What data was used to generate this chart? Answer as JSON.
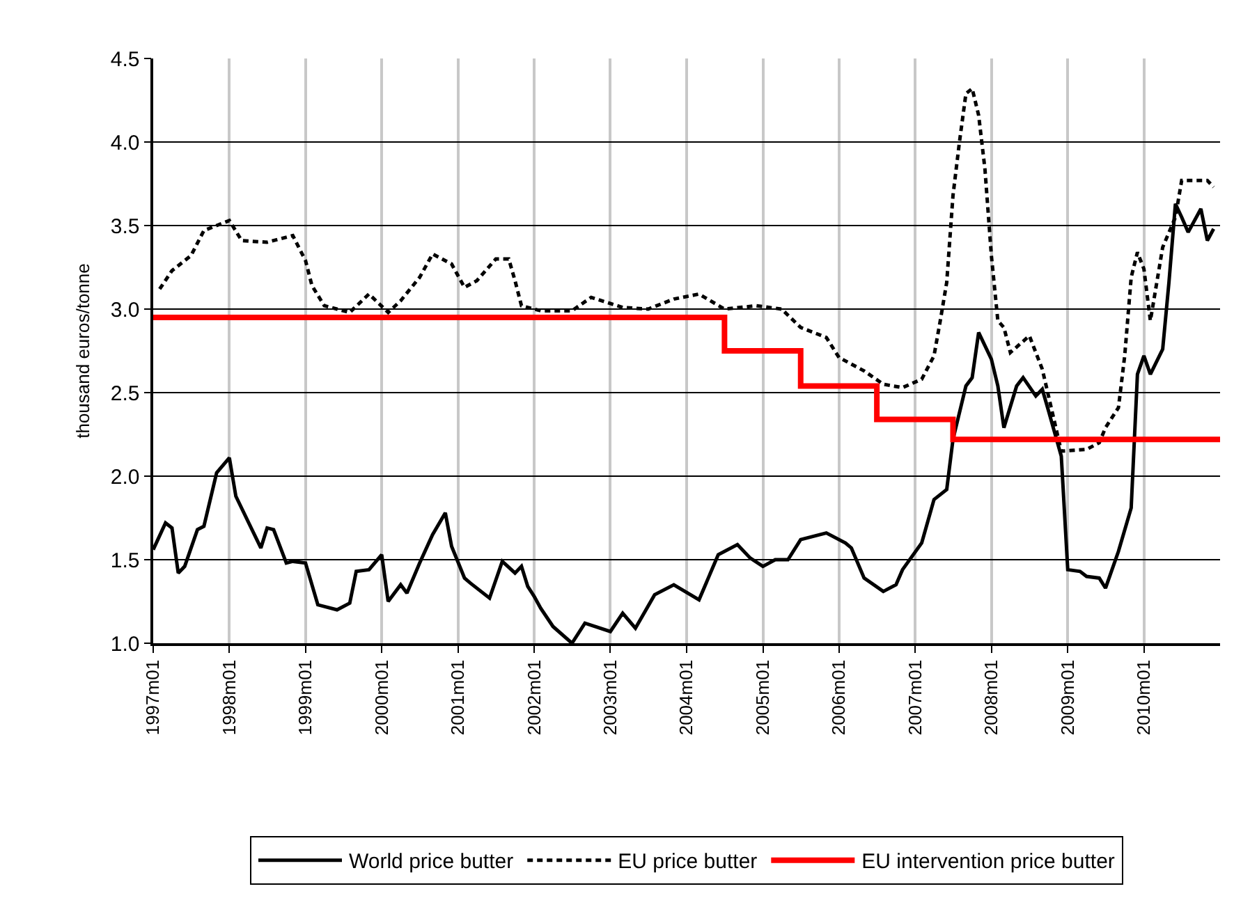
{
  "chart_data": {
    "type": "line",
    "ylabel": "thousand euros/tonne",
    "xlim": [
      "1997-01",
      "2011-01"
    ],
    "xticks": [
      {
        "value": "1997-01",
        "label": "1997m01"
      },
      {
        "value": "1998-01",
        "label": "1998m01"
      },
      {
        "value": "1999-01",
        "label": "1999m01"
      },
      {
        "value": "2000-01",
        "label": "2000m01"
      },
      {
        "value": "2001-01",
        "label": "2001m01"
      },
      {
        "value": "2002-01",
        "label": "2002m01"
      },
      {
        "value": "2003-01",
        "label": "2003m01"
      },
      {
        "value": "2004-01",
        "label": "2004m01"
      },
      {
        "value": "2005-01",
        "label": "2005m01"
      },
      {
        "value": "2006-01",
        "label": "2006m01"
      },
      {
        "value": "2007-01",
        "label": "2007m01"
      },
      {
        "value": "2008-01",
        "label": "2008m01"
      },
      {
        "value": "2009-01",
        "label": "2009m01"
      },
      {
        "value": "2010-01",
        "label": "2010m01"
      }
    ],
    "ylim": [
      1.0,
      4.5
    ],
    "yticks": [
      {
        "value": 1.0,
        "label": "1.0"
      },
      {
        "value": 1.5,
        "label": "1.5"
      },
      {
        "value": 2.0,
        "label": "2.0"
      },
      {
        "value": 2.5,
        "label": "2.5"
      },
      {
        "value": 3.0,
        "label": "3.0"
      },
      {
        "value": 3.5,
        "label": "3.5"
      },
      {
        "value": 4.0,
        "label": "4.0"
      },
      {
        "value": 4.5,
        "label": "4.5"
      }
    ],
    "grid": true,
    "legend": "bottom",
    "marker": "none",
    "series": [
      {
        "name": "World price butter",
        "color": "#000000",
        "line_style": "solid",
        "x": [
          "1997-01",
          "1997-03",
          "1997-04",
          "1997-05",
          "1997-06",
          "1997-08",
          "1997-09",
          "1997-11",
          "1998-01",
          "1998-02",
          "1998-06",
          "1998-07",
          "1998-08",
          "1998-10",
          "1998-11",
          "1999-01",
          "1999-03",
          "1999-06",
          "1999-08",
          "1999-09",
          "1999-11",
          "2000-01",
          "2000-02",
          "2000-04",
          "2000-05",
          "2000-07",
          "2000-09",
          "2000-11",
          "2000-12",
          "2001-02",
          "2001-03",
          "2001-06",
          "2001-08",
          "2001-10",
          "2001-11",
          "2001-12",
          "2002-01",
          "2002-02",
          "2002-04",
          "2002-07",
          "2002-09",
          "2003-01",
          "2003-03",
          "2003-05",
          "2003-08",
          "2003-11",
          "2004-03",
          "2004-06",
          "2004-09",
          "2004-11",
          "2005-01",
          "2005-03",
          "2005-05",
          "2005-07",
          "2005-11",
          "2006-02",
          "2006-03",
          "2006-05",
          "2006-08",
          "2006-10",
          "2006-11",
          "2007-02",
          "2007-04",
          "2007-06",
          "2007-07",
          "2007-09",
          "2007-10",
          "2007-11",
          "2008-01",
          "2008-02",
          "2008-03",
          "2008-05",
          "2008-06",
          "2008-08",
          "2008-09",
          "2008-10",
          "2008-12",
          "2009-01",
          "2009-03",
          "2009-04",
          "2009-06",
          "2009-07",
          "2009-09",
          "2009-11",
          "2009-12",
          "2010-01",
          "2010-02",
          "2010-04",
          "2010-05",
          "2010-06",
          "2010-07",
          "2010-08",
          "2010-10",
          "2010-11",
          "2010-12"
        ],
        "values": [
          1.56,
          1.72,
          1.69,
          1.42,
          1.46,
          1.68,
          1.7,
          2.02,
          2.11,
          1.88,
          1.57,
          1.69,
          1.68,
          1.48,
          1.49,
          1.48,
          1.23,
          1.2,
          1.24,
          1.43,
          1.44,
          1.53,
          1.25,
          1.35,
          1.3,
          1.48,
          1.65,
          1.78,
          1.58,
          1.39,
          1.36,
          1.27,
          1.49,
          1.42,
          1.46,
          1.34,
          1.28,
          1.21,
          1.1,
          1.0,
          1.12,
          1.07,
          1.18,
          1.09,
          1.29,
          1.35,
          1.26,
          1.53,
          1.59,
          1.51,
          1.46,
          1.5,
          1.5,
          1.62,
          1.66,
          1.6,
          1.57,
          1.39,
          1.31,
          1.35,
          1.44,
          1.6,
          1.86,
          1.92,
          2.22,
          2.54,
          2.59,
          2.86,
          2.7,
          2.54,
          2.29,
          2.54,
          2.59,
          2.48,
          2.52,
          2.39,
          2.12,
          1.44,
          1.43,
          1.4,
          1.39,
          1.33,
          1.55,
          1.81,
          2.61,
          2.72,
          2.61,
          2.76,
          3.16,
          3.63,
          3.55,
          3.46,
          3.6,
          3.41,
          3.48
        ]
      },
      {
        "name": "EU price butter",
        "color": "#000000",
        "line_style": "dashed",
        "x": [
          "1997-02",
          "1997-04",
          "1997-07",
          "1997-09",
          "1998-01",
          "1998-03",
          "1998-07",
          "1998-11",
          "1999-01",
          "1999-02",
          "1999-04",
          "1999-08",
          "1999-11",
          "2000-02",
          "2000-04",
          "2000-07",
          "2000-09",
          "2000-12",
          "2001-02",
          "2001-04",
          "2001-07",
          "2001-09",
          "2001-10",
          "2001-11",
          "2002-02",
          "2002-07",
          "2002-10",
          "2003-03",
          "2003-07",
          "2003-11",
          "2004-03",
          "2004-07",
          "2004-12",
          "2005-04",
          "2005-07",
          "2005-11",
          "2006-01",
          "2006-05",
          "2006-08",
          "2006-11",
          "2007-02",
          "2007-04",
          "2007-05",
          "2007-06",
          "2007-07",
          "2007-08",
          "2007-09",
          "2007-10",
          "2007-11",
          "2007-12",
          "2008-01",
          "2008-02",
          "2008-03",
          "2008-04",
          "2008-07",
          "2008-09",
          "2008-12",
          "2009-04",
          "2009-06",
          "2009-07",
          "2009-09",
          "2009-10",
          "2009-11",
          "2009-12",
          "2010-01",
          "2010-02",
          "2010-04",
          "2010-06",
          "2010-07",
          "2010-11",
          "2010-12"
        ],
        "values": [
          3.12,
          3.23,
          3.32,
          3.47,
          3.53,
          3.41,
          3.4,
          3.44,
          3.29,
          3.14,
          3.02,
          2.98,
          3.09,
          2.98,
          3.05,
          3.19,
          3.33,
          3.27,
          3.13,
          3.17,
          3.3,
          3.3,
          3.17,
          3.02,
          2.99,
          2.99,
          3.07,
          3.01,
          3.0,
          3.06,
          3.09,
          3.0,
          3.02,
          3.0,
          2.89,
          2.83,
          2.71,
          2.63,
          2.55,
          2.53,
          2.58,
          2.72,
          2.93,
          3.16,
          3.68,
          4.0,
          4.29,
          4.32,
          4.16,
          3.84,
          3.32,
          2.93,
          2.89,
          2.74,
          2.84,
          2.64,
          2.15,
          2.16,
          2.2,
          2.29,
          2.41,
          2.72,
          3.19,
          3.34,
          3.24,
          2.93,
          3.37,
          3.55,
          3.77,
          3.77,
          3.73
        ]
      },
      {
        "name": "EU intervention price butter",
        "color": "#ff0000",
        "line_style": "solid",
        "type": "step",
        "x": [
          "1997-01",
          "2004-07",
          "2005-07",
          "2006-07",
          "2007-07",
          "2011-01"
        ],
        "values": [
          2.95,
          2.75,
          2.54,
          2.34,
          2.22,
          2.22
        ]
      }
    ]
  }
}
